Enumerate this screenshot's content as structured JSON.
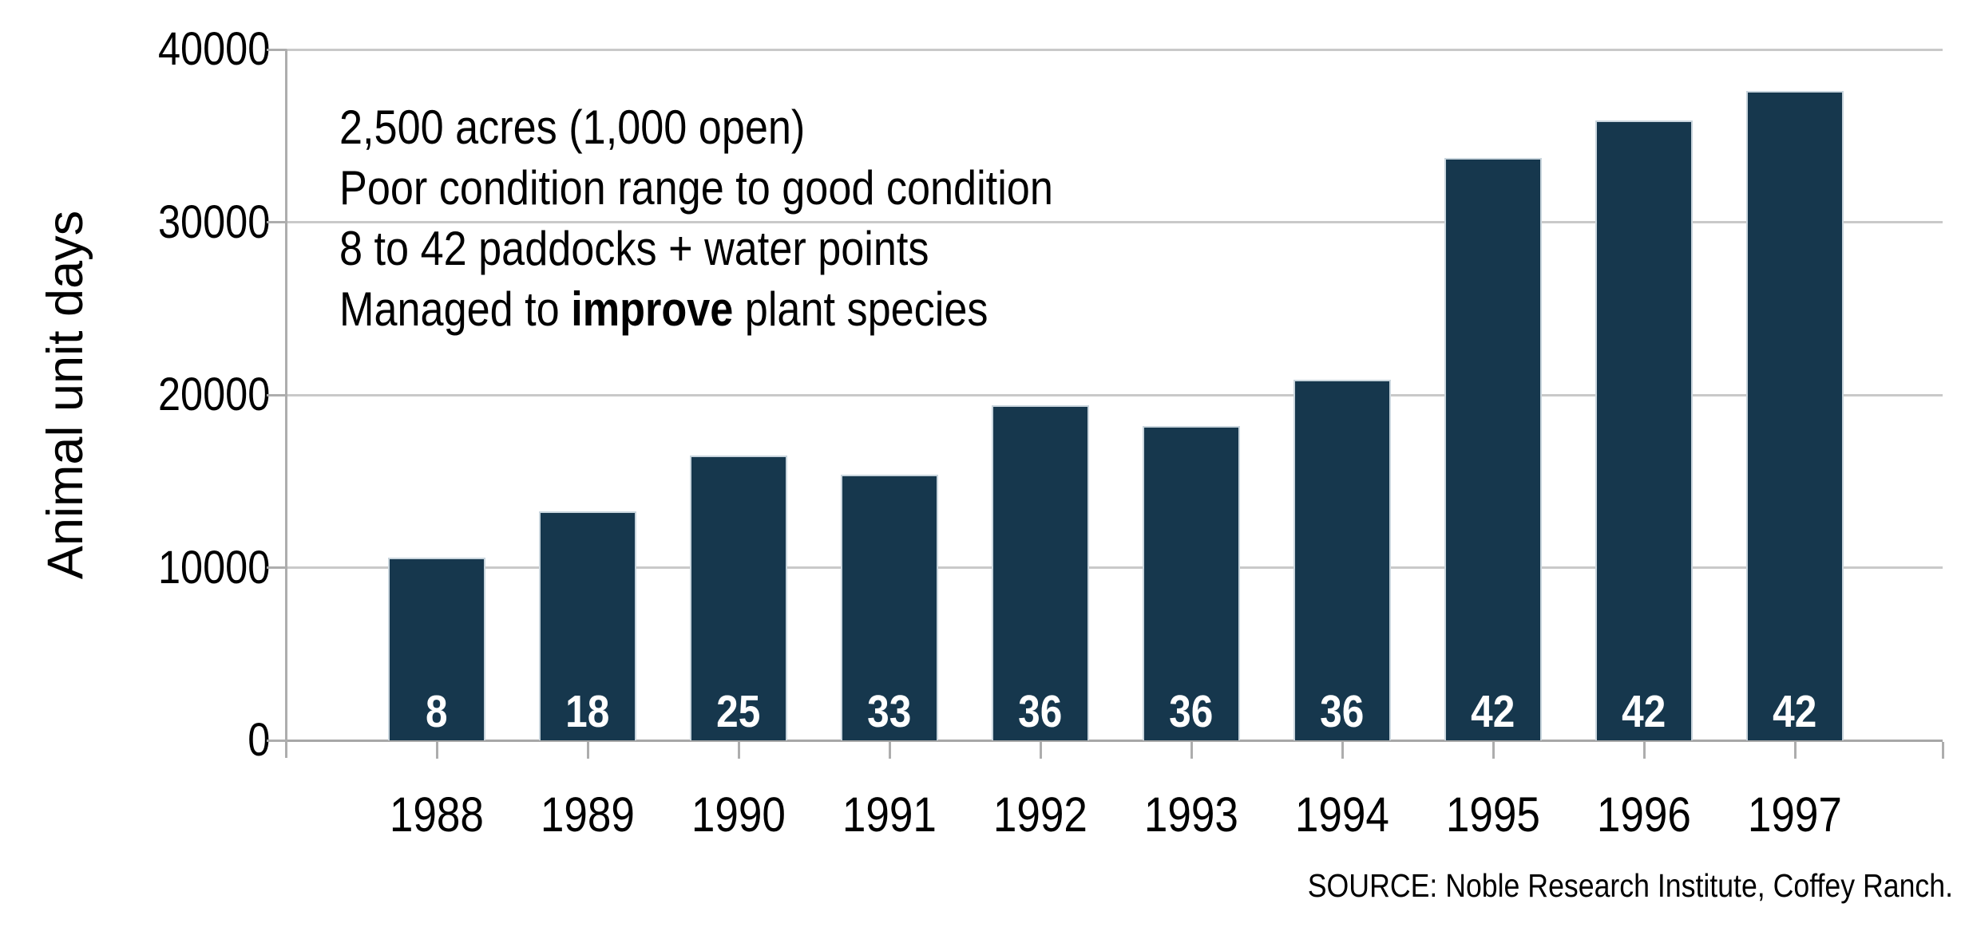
{
  "chart_data": {
    "type": "bar",
    "title": "",
    "categories": [
      "1988",
      "1989",
      "1990",
      "1991",
      "1992",
      "1993",
      "1994",
      "1995",
      "1996",
      "1997"
    ],
    "values": [
      10600,
      13250,
      16500,
      15400,
      19400,
      18200,
      20900,
      33700,
      35900,
      37600
    ],
    "bar_labels": [
      "8",
      "18",
      "25",
      "33",
      "36",
      "36",
      "36",
      "42",
      "42",
      "42"
    ],
    "xlabel": "",
    "ylabel": "Animal unit days",
    "ylim": [
      0,
      40000
    ],
    "yticks": [
      0,
      10000,
      20000,
      30000,
      40000
    ],
    "ytick_labels": [
      "0",
      "10000",
      "20000",
      "30000",
      "40000"
    ],
    "grid": "horizontal gridlines on, no vertical gridlines, no legend",
    "annotation": {
      "line1": "2,500 acres (1,000 open)",
      "line2": "Poor condition range to good condition",
      "line3": "8 to 42 paddocks + water points",
      "line4_prefix": "Managed to ",
      "line4_bold": "improve",
      "line4_suffix": " plant species"
    },
    "source": "SOURCE: Noble Research Institute, Coffey Ranch.",
    "colors": {
      "bar_fill": "#16374D",
      "bar_border": "#C9D5DD",
      "bar_label_text": "#FFFFFF",
      "gridline": "#C9C9C9",
      "axis_line": "#ADADAD",
      "text": "#000000",
      "background": "#FFFFFF"
    }
  }
}
